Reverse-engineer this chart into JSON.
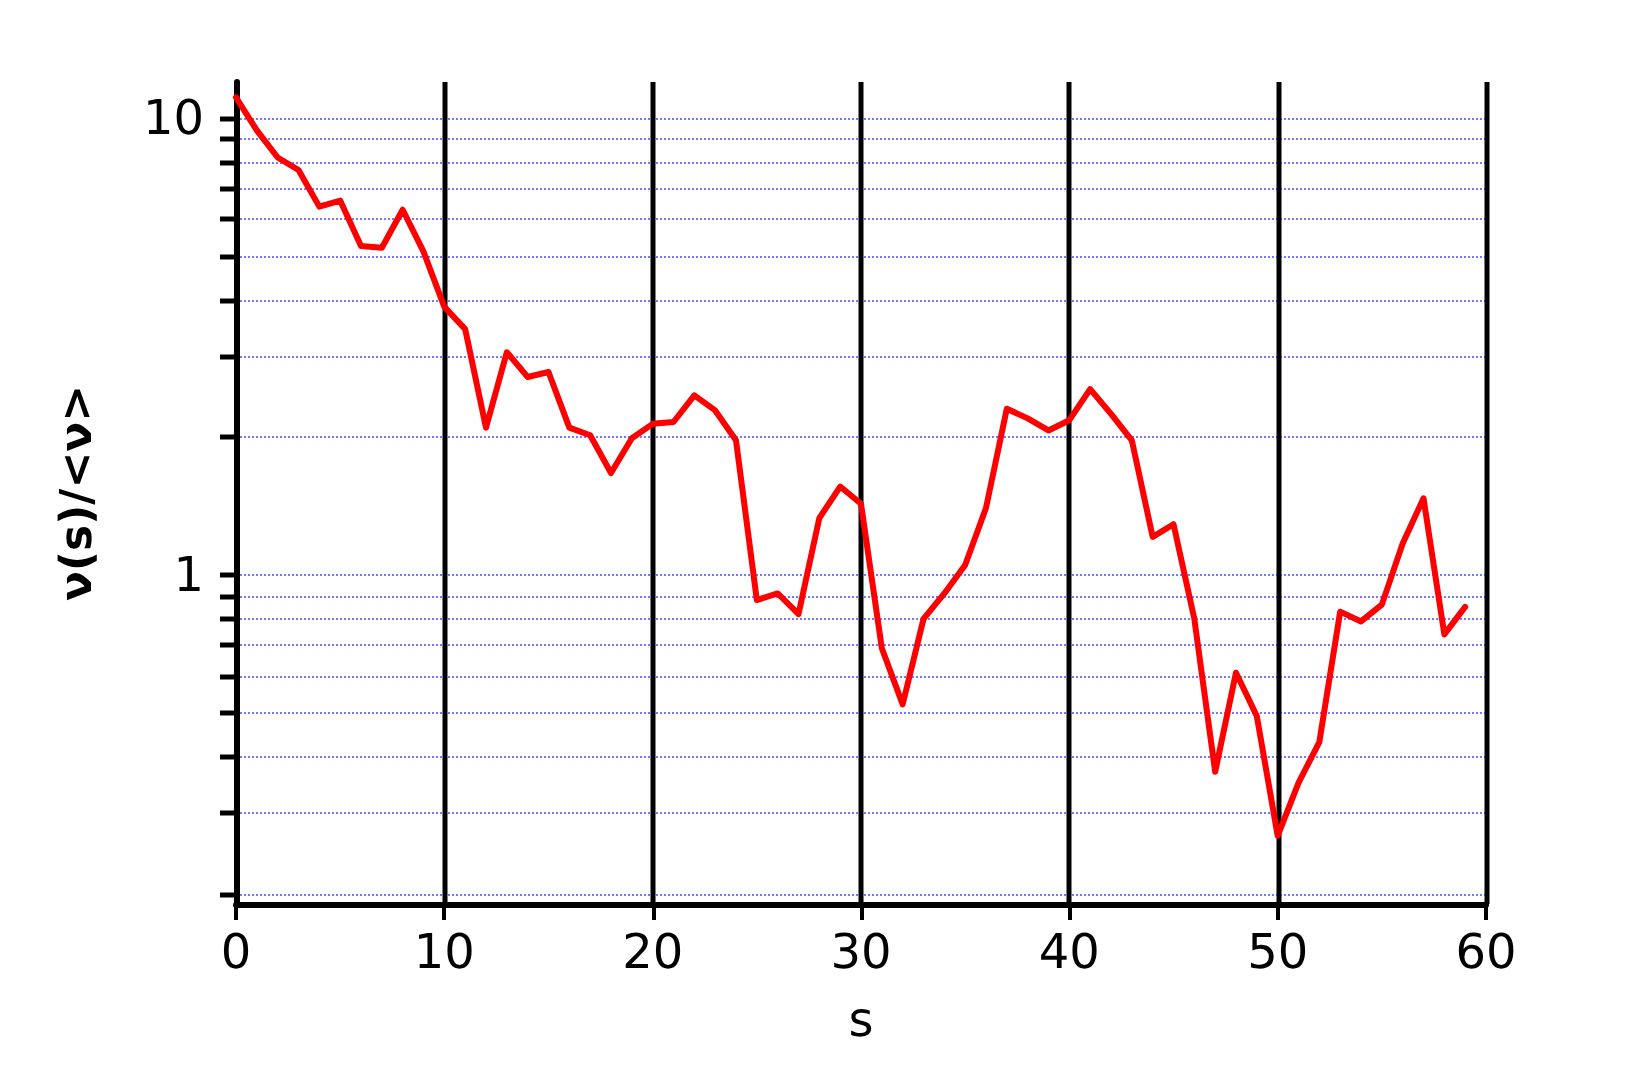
{
  "chart_data": {
    "type": "line",
    "xlabel": "s",
    "ylabel": "ν(s)/<ν>",
    "log": "y",
    "grid": true,
    "marker": "none",
    "line_style": "solid",
    "x": [
      0,
      1,
      2,
      3,
      4,
      5,
      6,
      7,
      8,
      9,
      10,
      11,
      12,
      13,
      14,
      15,
      16,
      17,
      18,
      19,
      20,
      21,
      22,
      23,
      24,
      25,
      26,
      27,
      28,
      29,
      30,
      31,
      32,
      33,
      34,
      35,
      36,
      37,
      38,
      39,
      40,
      41,
      42,
      43,
      44,
      45,
      46,
      47,
      48,
      49,
      50,
      51,
      52,
      53,
      54,
      55,
      56,
      57,
      58,
      59
    ],
    "series": [
      {
        "color": "#ff0000",
        "values": [
          11.1,
          9.4,
          8.2,
          7.7,
          6.4,
          6.6,
          5.25,
          5.2,
          6.3,
          5.1,
          3.86,
          3.45,
          2.1,
          3.07,
          2.71,
          2.78,
          2.1,
          2.02,
          1.67,
          1.99,
          2.14,
          2.16,
          2.47,
          2.29,
          1.97,
          0.88,
          0.91,
          0.82,
          1.33,
          1.56,
          1.43,
          0.69,
          0.52,
          0.8,
          0.91,
          1.05,
          1.4,
          2.31,
          2.2,
          2.07,
          2.18,
          2.55,
          2.25,
          1.97,
          1.21,
          1.29,
          0.8,
          0.37,
          0.61,
          0.49,
          0.268,
          0.35,
          0.43,
          0.83,
          0.79,
          0.86,
          1.17,
          1.47,
          0.74,
          0.85
        ]
      }
    ],
    "xlim": [
      0,
      60
    ],
    "xticks": [
      0,
      10,
      20,
      30,
      40,
      50,
      60
    ],
    "ylim": [
      0.19,
      12
    ],
    "yticks": [
      {
        "value": 0.2,
        "label": null
      },
      {
        "value": 0.3,
        "label": null
      },
      {
        "value": 0.4,
        "label": null
      },
      {
        "value": 0.5,
        "label": null
      },
      {
        "value": 0.6,
        "label": null
      },
      {
        "value": 0.7,
        "label": null
      },
      {
        "value": 0.8,
        "label": null
      },
      {
        "value": 0.9,
        "label": null
      },
      1,
      {
        "value": 2,
        "label": null
      },
      {
        "value": 3,
        "label": null
      },
      {
        "value": 4,
        "label": null
      },
      {
        "value": 5,
        "label": null
      },
      {
        "value": 6,
        "label": null
      },
      {
        "value": 7,
        "label": null
      },
      {
        "value": 8,
        "label": null
      },
      {
        "value": 9,
        "label": null
      },
      10
    ]
  }
}
